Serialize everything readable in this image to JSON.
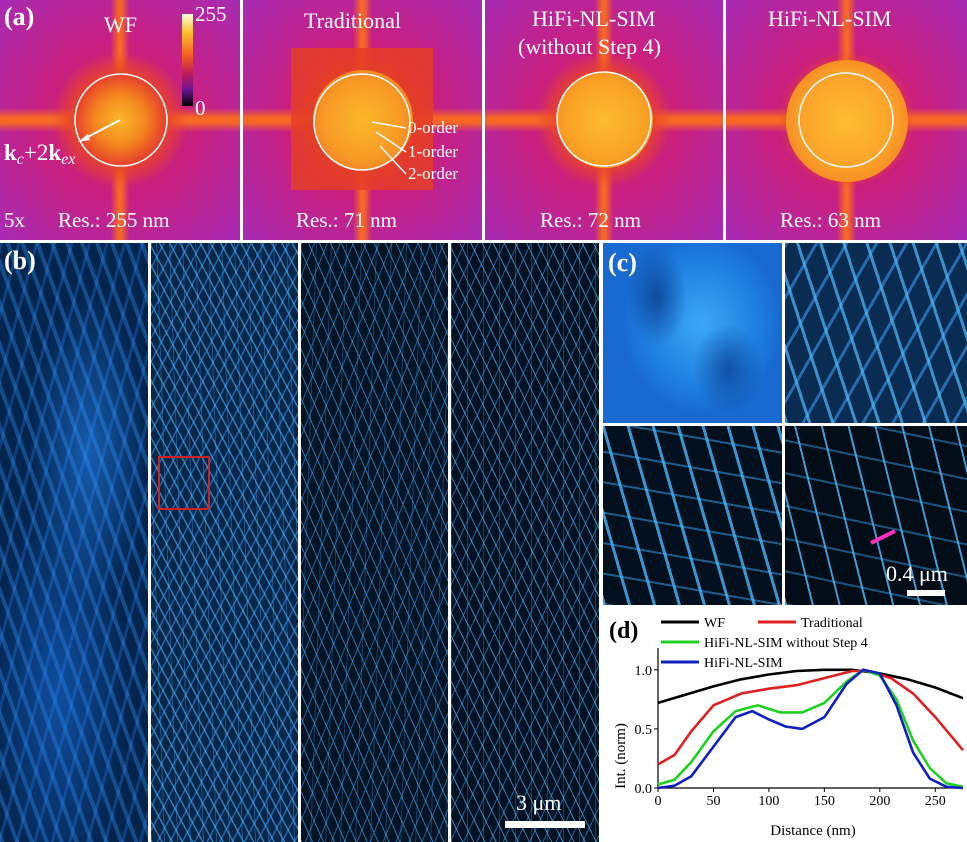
{
  "panel_a": {
    "label": "(a)",
    "colorbar": {
      "max": "255",
      "min": "0"
    },
    "subpanels": [
      {
        "title": "WF",
        "res": "Res.: 255 nm",
        "magnification": "5x",
        "annotation_k": "k",
        "annotation_c": "c",
        "annotation_plus": "+2",
        "annotation_ex": "ex"
      },
      {
        "title": "Traditional",
        "res": "Res.: 71 nm",
        "orders": [
          "0-order",
          "1-order",
          "2-order"
        ]
      },
      {
        "title": "HiFi-NL-SIM",
        "title2": "(without Step 4)",
        "res": "Res.: 72 nm"
      },
      {
        "title": "HiFi-NL-SIM",
        "res": "Res.: 63 nm"
      }
    ]
  },
  "panel_b": {
    "label": "(b)",
    "scalebar": "3 μm"
  },
  "panel_c": {
    "label": "(c)",
    "scalebar": "0.4 μm"
  },
  "panel_d": {
    "label": "(d)",
    "chart_data": {
      "type": "line",
      "xlabel": "Distance (nm)",
      "ylabel": "Int. (norm)",
      "xlim": [
        0,
        275
      ],
      "ylim": [
        0,
        1.1
      ],
      "xticks": [
        "0",
        "50",
        "100",
        "150",
        "200",
        "250"
      ],
      "yticks": [
        "0.0",
        "0.5",
        "1.0"
      ],
      "series": [
        {
          "name": "WF",
          "color": "#000000",
          "x": [
            0,
            25,
            50,
            75,
            100,
            125,
            150,
            175,
            200,
            225,
            250,
            275
          ],
          "y": [
            0.72,
            0.79,
            0.86,
            0.92,
            0.96,
            0.99,
            1.0,
            1.0,
            0.97,
            0.92,
            0.85,
            0.76
          ]
        },
        {
          "name": "Traditional",
          "color": "#e02020",
          "x": [
            0,
            15,
            30,
            50,
            75,
            100,
            125,
            150,
            175,
            190,
            210,
            230,
            250,
            275
          ],
          "y": [
            0.2,
            0.28,
            0.48,
            0.7,
            0.8,
            0.84,
            0.87,
            0.93,
            0.99,
            0.99,
            0.93,
            0.8,
            0.6,
            0.32
          ]
        },
        {
          "name": "HiFi-NL-SIM without Step 4",
          "color": "#20d020",
          "x": [
            0,
            15,
            30,
            50,
            70,
            90,
            110,
            130,
            150,
            170,
            185,
            200,
            215,
            230,
            245,
            260,
            275
          ],
          "y": [
            0.03,
            0.07,
            0.22,
            0.48,
            0.65,
            0.7,
            0.64,
            0.64,
            0.72,
            0.9,
            1.0,
            0.95,
            0.75,
            0.4,
            0.17,
            0.04,
            0.01
          ]
        },
        {
          "name": "HiFi-NL-SIM",
          "color": "#1020c0",
          "x": [
            0,
            15,
            30,
            50,
            70,
            85,
            100,
            115,
            130,
            150,
            170,
            185,
            200,
            215,
            230,
            245,
            260,
            275
          ],
          "y": [
            0.0,
            0.02,
            0.1,
            0.35,
            0.6,
            0.65,
            0.58,
            0.52,
            0.5,
            0.6,
            0.88,
            1.0,
            0.97,
            0.7,
            0.3,
            0.08,
            0.01,
            0.0
          ]
        }
      ]
    }
  }
}
